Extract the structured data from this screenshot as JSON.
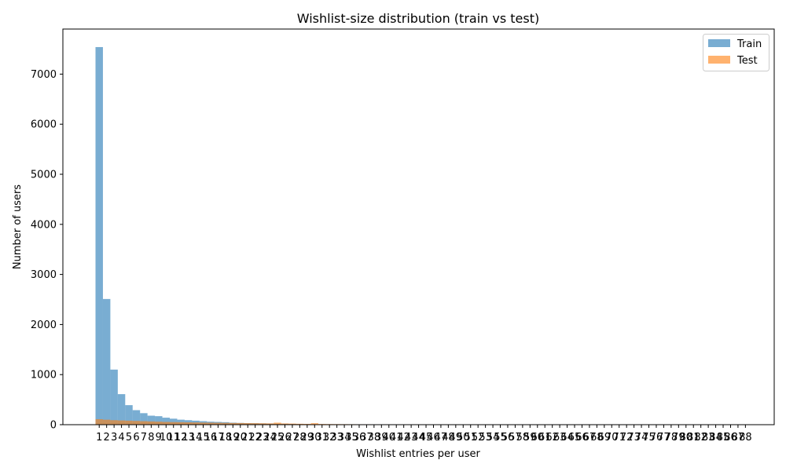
{
  "chart_data": {
    "type": "bar",
    "title": "Wishlist-size distribution (train vs test)",
    "xlabel": "Wishlist entries per user",
    "ylabel": "Number of users",
    "ylim": [
      0,
      7900
    ],
    "yticks": [
      0,
      1000,
      2000,
      3000,
      4000,
      5000,
      6000,
      7000
    ],
    "grid": false,
    "legend_position": "top-right",
    "x_tick_labels": [
      "1",
      "2",
      "3",
      "4",
      "5",
      "6",
      "7",
      "8",
      "9",
      "10",
      "11",
      "12",
      "13",
      "14",
      "15",
      "16",
      "17",
      "18",
      "19",
      "20",
      "21",
      "22",
      "23",
      "24",
      "25",
      "26",
      "27",
      "28",
      "29",
      "30",
      "31",
      "32",
      "33",
      "34",
      "35",
      "36",
      "37",
      "38",
      "39",
      "40",
      "41",
      "42",
      "43",
      "44",
      "45",
      "46",
      "47",
      "48",
      "49",
      "50",
      "51",
      "52",
      "53",
      "54",
      "55",
      "56",
      "57",
      "58",
      "59",
      "60",
      "61",
      "62",
      "63",
      "64",
      "65",
      "66",
      "67",
      "68",
      "69",
      "70",
      "71",
      "72",
      "73",
      "74",
      "75",
      "76",
      "77",
      "78",
      "79",
      "80",
      "81",
      "82",
      "83",
      "84",
      "85",
      "86",
      "87",
      "88"
    ],
    "series": [
      {
        "name": "Train",
        "color": "#1f77b4",
        "opacity": 0.6,
        "x": [
          1,
          2,
          3,
          4,
          5,
          6,
          7,
          8,
          9,
          10,
          11,
          12,
          13,
          14,
          15,
          16,
          17,
          18,
          19,
          20,
          21,
          22,
          23,
          24,
          25,
          26,
          27,
          28,
          29,
          30
        ],
        "values": [
          7540,
          2510,
          1100,
          610,
          390,
          290,
          230,
          180,
          170,
          140,
          120,
          100,
          90,
          80,
          70,
          60,
          55,
          50,
          40,
          35,
          30,
          28,
          25,
          22,
          20,
          18,
          15,
          12,
          10,
          8
        ]
      },
      {
        "name": "Test",
        "color": "#ff7f0e",
        "opacity": 0.6,
        "x": [
          1,
          2,
          3,
          4,
          5,
          6,
          7,
          8,
          9,
          10,
          11,
          12,
          13,
          14,
          15,
          16,
          17,
          18,
          19,
          20,
          21,
          22,
          23,
          24,
          25,
          26,
          27,
          28,
          29,
          30,
          31,
          32,
          33,
          34,
          35,
          36,
          37,
          38,
          39,
          40,
          41,
          42,
          43,
          44,
          45,
          46,
          47,
          48,
          49,
          50,
          51,
          52,
          53,
          54
        ],
        "values": [
          110,
          100,
          90,
          85,
          80,
          75,
          70,
          65,
          60,
          55,
          52,
          50,
          47,
          45,
          42,
          40,
          38,
          36,
          34,
          33,
          31,
          30,
          28,
          26,
          40,
          25,
          22,
          18,
          16,
          30,
          14,
          12,
          11,
          10,
          9,
          8,
          8,
          7,
          7,
          6,
          6,
          5,
          5,
          5,
          5,
          4,
          4,
          4,
          4,
          3,
          3,
          3,
          3,
          3
        ]
      }
    ]
  }
}
